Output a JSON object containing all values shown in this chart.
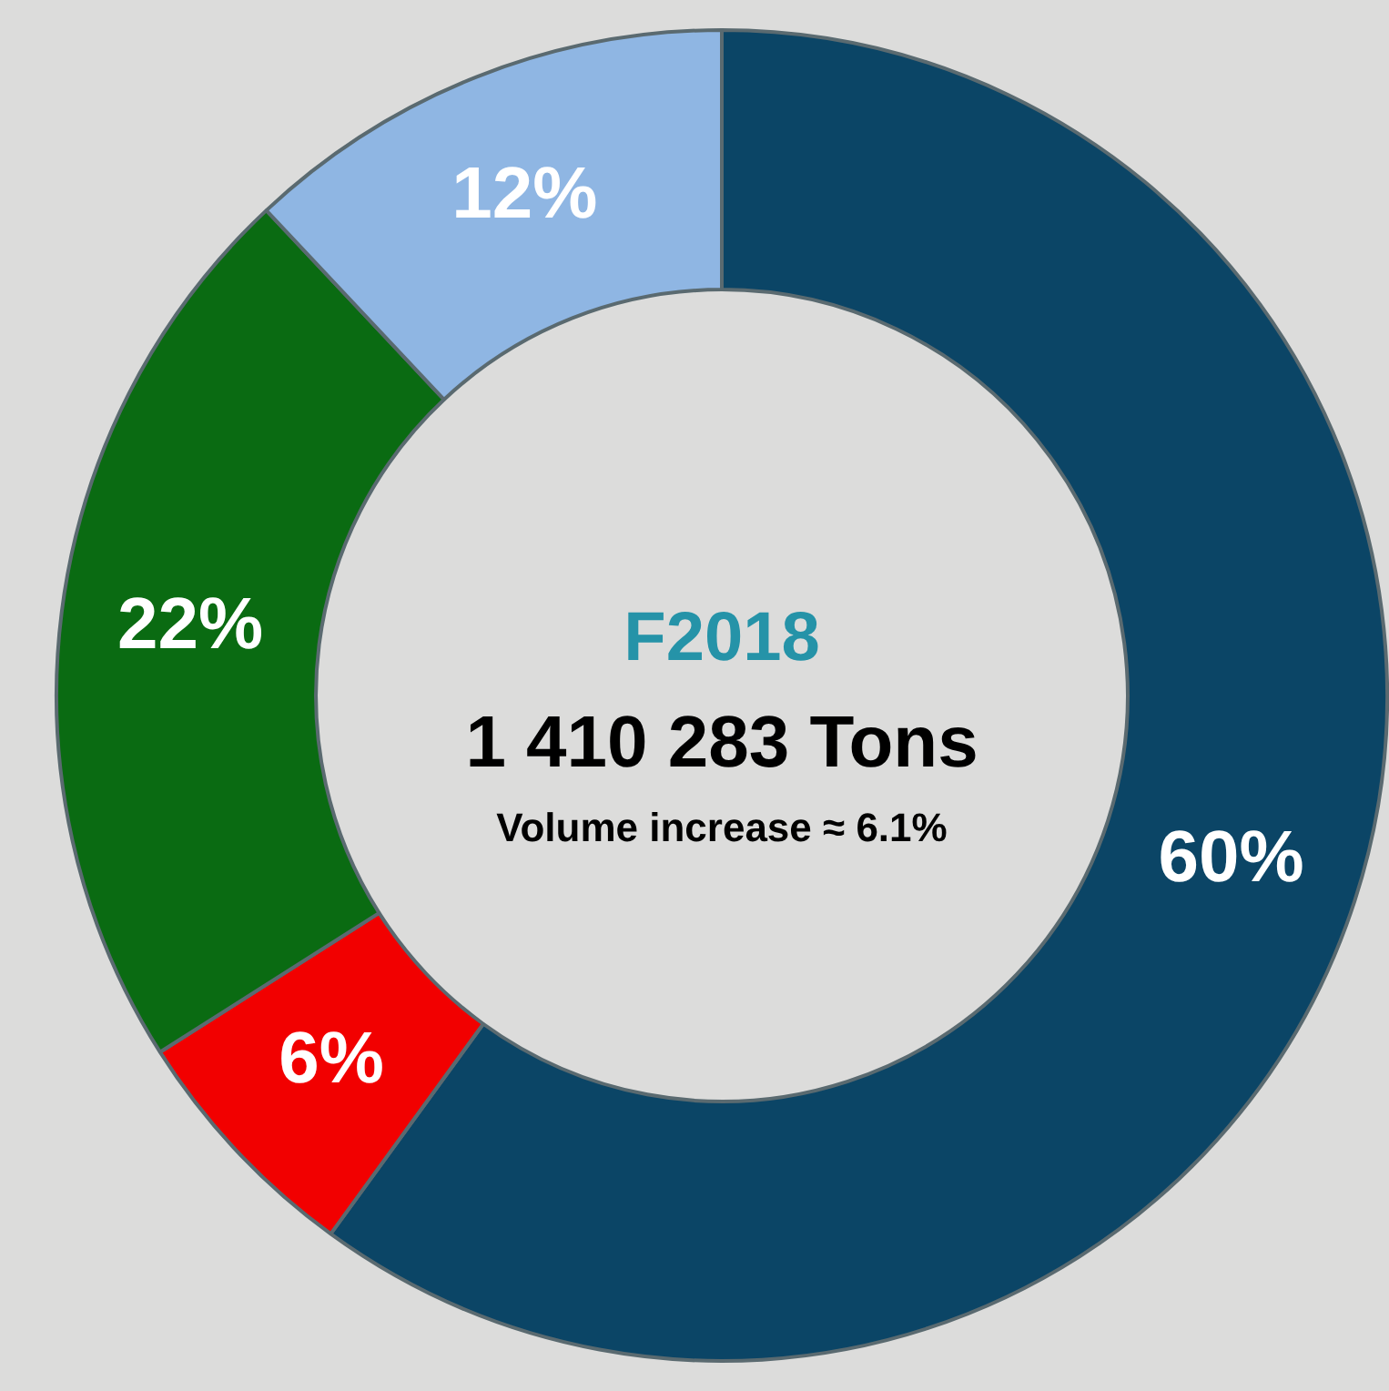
{
  "chart_data": {
    "type": "donut",
    "title": "F2018",
    "subtitle": "1 410 283 Tons",
    "annotations": [
      "Volume increase ≈ 6.1%"
    ],
    "categories": [
      null,
      null,
      null,
      null
    ],
    "values": [
      60,
      6,
      22,
      12
    ],
    "colors": [
      "#0b4566",
      "#f20000",
      "#0a6b12",
      "#8fb6e3"
    ],
    "value_labels": [
      "60%",
      "6%",
      "22%",
      "12%"
    ],
    "legend": false
  }
}
